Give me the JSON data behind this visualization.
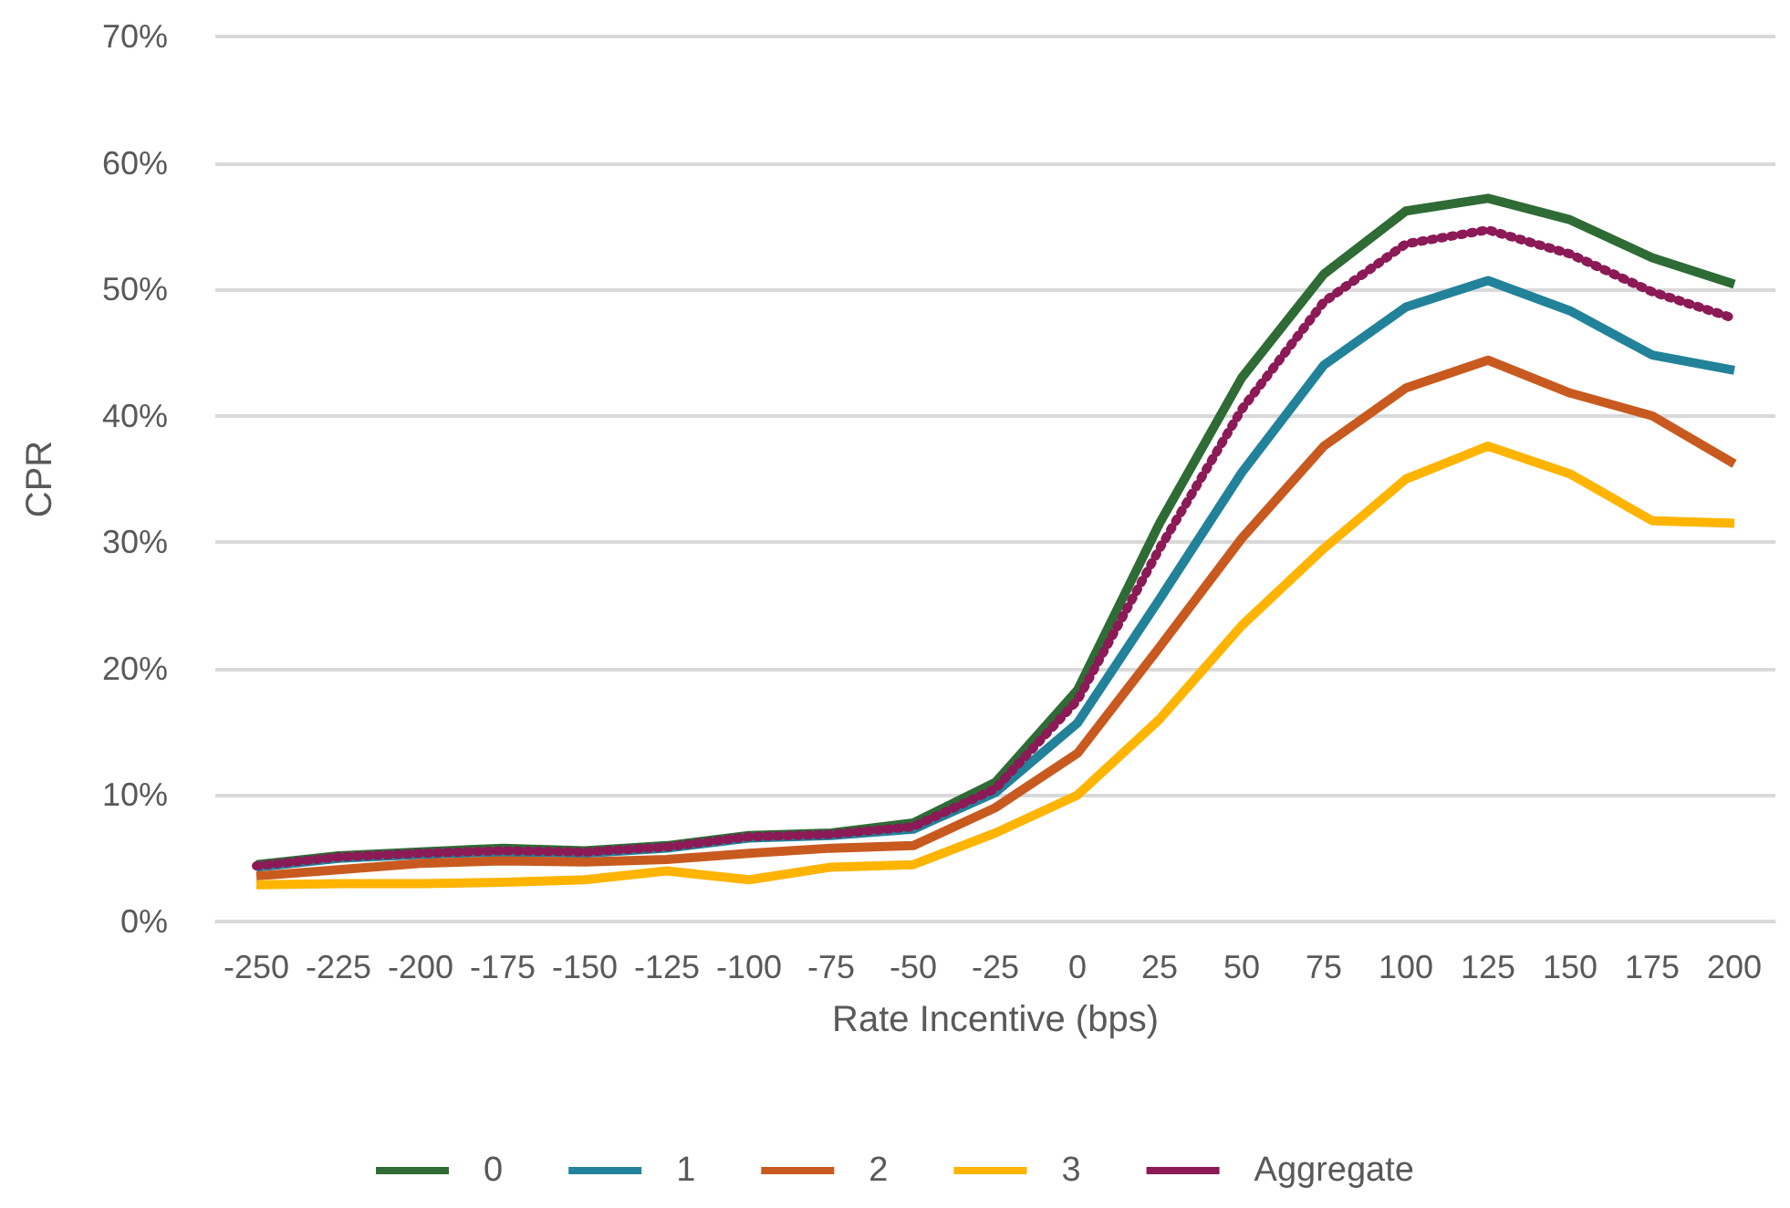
{
  "chart_data": {
    "type": "line",
    "xlabel": "Rate Incentive (bps)",
    "ylabel": "CPR",
    "categories": [
      "-250",
      "-225",
      "-200",
      "-175",
      "-150",
      "-125",
      "-100",
      "-75",
      "-50",
      "-25",
      "0",
      "25",
      "50",
      "75",
      "100",
      "125",
      "150",
      "175",
      "200"
    ],
    "series": [
      {
        "name": "0",
        "color": "#2e6b35",
        "line_style": "solid",
        "values": [
          4.5,
          5.2,
          5.5,
          5.8,
          5.6,
          6.0,
          6.8,
          7.0,
          7.8,
          11,
          18.3,
          31.5,
          43,
          51.2,
          56.2,
          57.2,
          55.5,
          52.5,
          50.4
        ]
      },
      {
        "name": "1",
        "color": "#22829a",
        "line_style": "solid",
        "values": [
          4.3,
          5.0,
          5.3,
          5.5,
          5.4,
          5.8,
          6.6,
          6.8,
          7.3,
          10.2,
          15.7,
          25.5,
          35.5,
          44,
          48.6,
          50.7,
          48.3,
          44.8,
          43.6
        ]
      },
      {
        "name": "2",
        "color": "#c85a1f",
        "line_style": "solid",
        "values": [
          3.6,
          4.1,
          4.6,
          4.8,
          4.7,
          4.9,
          5.4,
          5.8,
          6.0,
          9.0,
          13.3,
          21.7,
          30.3,
          37.6,
          42.2,
          44.4,
          41.8,
          40.0,
          36.2
        ]
      },
      {
        "name": "3",
        "color": "#ffb400",
        "line_style": "solid",
        "values": [
          2.9,
          3.0,
          3.0,
          3.1,
          3.3,
          4.0,
          3.3,
          4.3,
          4.5,
          7.0,
          10.0,
          16,
          23.4,
          29.5,
          35,
          37.6,
          35.4,
          31.7,
          31.5
        ]
      },
      {
        "name": "Aggregate",
        "color": "#8b1a56",
        "line_style": "dotted",
        "values": [
          4.4,
          5.1,
          5.4,
          5.6,
          5.5,
          5.9,
          6.7,
          6.9,
          7.5,
          10.5,
          17.5,
          29.5,
          40.5,
          49,
          53.6,
          54.7,
          52.8,
          49.8,
          47.7
        ]
      }
    ],
    "ylim": [
      0,
      70
    ],
    "yticks": [
      {
        "value": 0,
        "label": "0%"
      },
      {
        "value": 10,
        "label": "10%"
      },
      {
        "value": 20,
        "label": "20%"
      },
      {
        "value": 30,
        "label": "30%"
      },
      {
        "value": 40,
        "label": "40%"
      },
      {
        "value": 50,
        "label": "50%"
      },
      {
        "value": 60,
        "label": "60%"
      },
      {
        "value": 70,
        "label": "70%"
      }
    ],
    "grid": "y",
    "legend": "bottom",
    "marker": "none"
  }
}
